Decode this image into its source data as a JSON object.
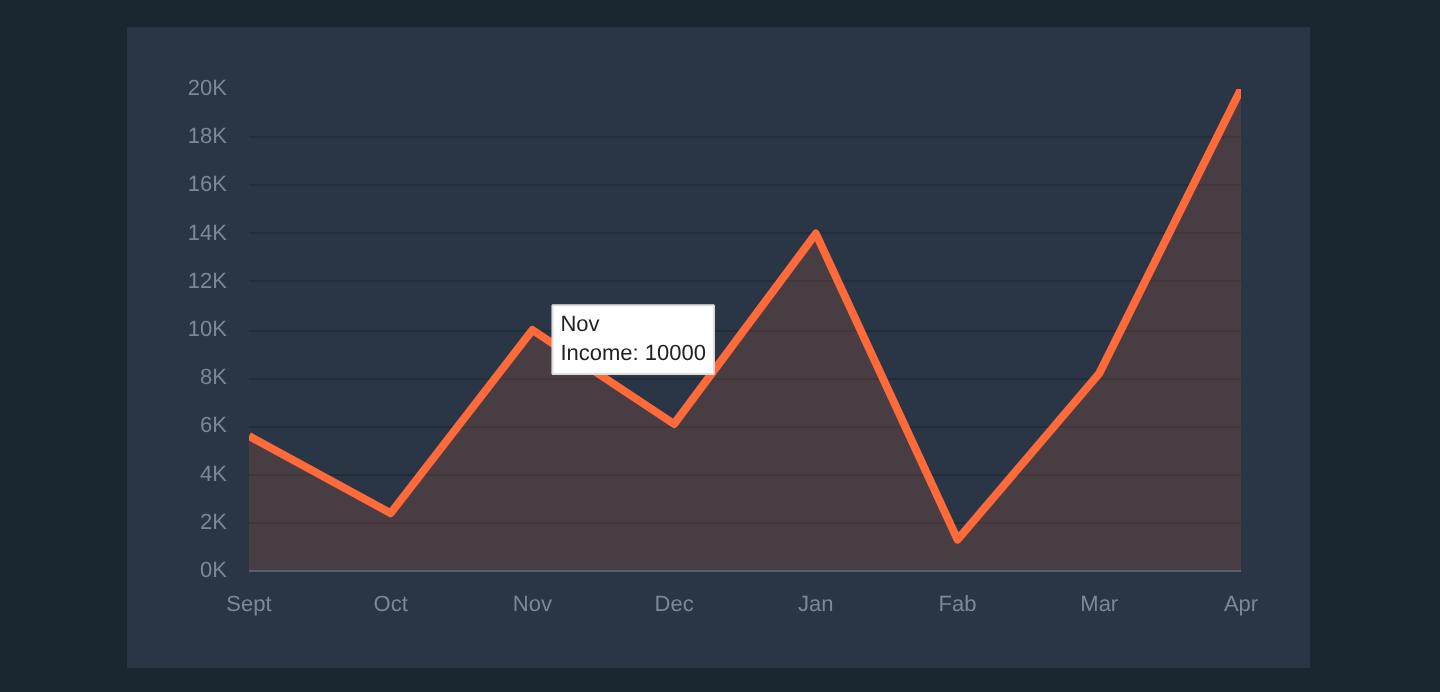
{
  "chart_data": {
    "type": "area",
    "categories": [
      "Sept",
      "Oct",
      "Nov",
      "Dec",
      "Jan",
      "Fab",
      "Mar",
      "Apr"
    ],
    "series": [
      {
        "color": "#ff6a3a",
        "values": [
          5600,
          2400,
          10000,
          6100,
          14000,
          1300,
          8200,
          20000
        ]
      }
    ],
    "ylim": [
      0,
      20000
    ],
    "yticks": [
      {
        "value": 0,
        "label": "0K"
      },
      {
        "value": 2000,
        "label": "2K"
      },
      {
        "value": 4000,
        "label": "4K"
      },
      {
        "value": 6000,
        "label": "6K"
      },
      {
        "value": 8000,
        "label": "8K"
      },
      {
        "value": 10000,
        "label": "10K"
      },
      {
        "value": 12000,
        "label": "12K"
      },
      {
        "value": 14000,
        "label": "14K"
      },
      {
        "value": 16000,
        "label": "16K"
      },
      {
        "value": 18000,
        "label": "18K"
      },
      {
        "value": 20000,
        "label": "20K"
      }
    ],
    "grid": "y",
    "marker": "none",
    "line_style": "solid",
    "annotations": [
      {
        "text": "Nov\nIncome: 10000",
        "x": "Nov",
        "y": 10000
      }
    ]
  }
}
